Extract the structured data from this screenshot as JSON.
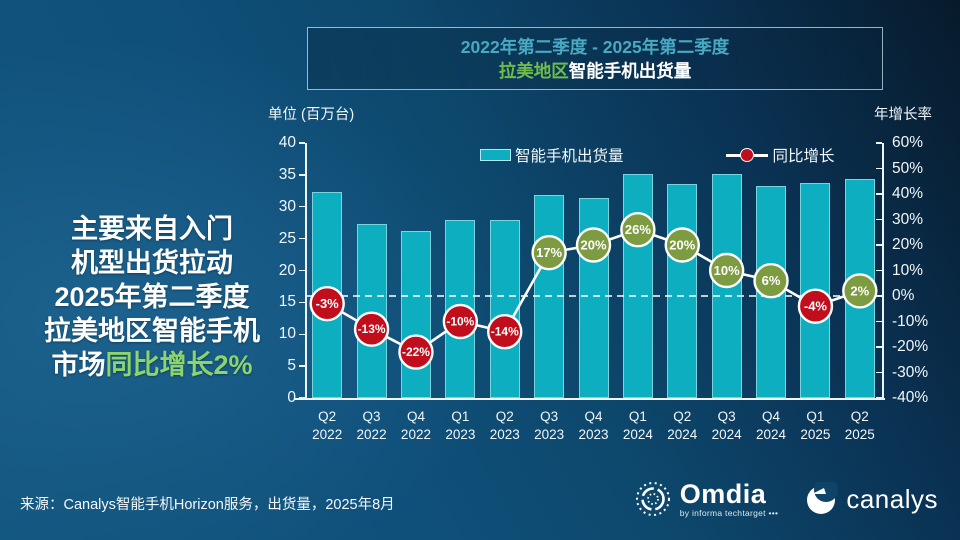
{
  "title_box": {
    "line1": "2022年第二季度 - 2025年第二季度",
    "line2_green": "拉美地区",
    "line2_white": "智能手机出货量"
  },
  "headline": {
    "lines": [
      "主要来自入门",
      "机型出货拉动",
      "2025年第二季度",
      "拉美地区智能手机"
    ],
    "tail_white": "市场",
    "tail_green": "同比增长2%"
  },
  "legend": {
    "bar_label": "智能手机出货量",
    "line_label": "同比增长"
  },
  "chart_data": {
    "type": "combo-bar-line",
    "categories": [
      {
        "quarter": "Q2",
        "year": "2022"
      },
      {
        "quarter": "Q3",
        "year": "2022"
      },
      {
        "quarter": "Q4",
        "year": "2022"
      },
      {
        "quarter": "Q1",
        "year": "2023"
      },
      {
        "quarter": "Q2",
        "year": "2023"
      },
      {
        "quarter": "Q3",
        "year": "2023"
      },
      {
        "quarter": "Q4",
        "year": "2023"
      },
      {
        "quarter": "Q1",
        "year": "2024"
      },
      {
        "quarter": "Q2",
        "year": "2024"
      },
      {
        "quarter": "Q3",
        "year": "2024"
      },
      {
        "quarter": "Q4",
        "year": "2024"
      },
      {
        "quarter": "Q1",
        "year": "2025"
      },
      {
        "quarter": "Q2",
        "year": "2025"
      }
    ],
    "series": [
      {
        "name": "智能手机出货量",
        "type": "bar",
        "unit": "百万台",
        "values": [
          32.3,
          27.3,
          26.2,
          27.9,
          28.0,
          31.9,
          31.4,
          35.2,
          33.6,
          35.1,
          33.3,
          33.8,
          34.3
        ]
      },
      {
        "name": "同比增长",
        "type": "line",
        "unit": "%",
        "values": [
          -3,
          -13,
          -22,
          -10,
          -14,
          17,
          20,
          26,
          20,
          10,
          6,
          -4,
          2
        ],
        "labels": [
          "-3%",
          "-13%",
          "-22%",
          "-10%",
          "-14%",
          "17%",
          "20%",
          "26%",
          "20%",
          "10%",
          "6%",
          "-4%",
          "2%"
        ]
      }
    ],
    "left_axis": {
      "title": "单位 (百万台)",
      "min": 0,
      "max": 40,
      "step": 5,
      "tick_labels": [
        "40",
        "35",
        "30",
        "25",
        "20",
        "15",
        "10",
        "5",
        "0"
      ]
    },
    "right_axis": {
      "title": "年增长率",
      "min": -40,
      "max": 60,
      "step": 10,
      "tick_labels": [
        "60%",
        "50%",
        "40%",
        "30%",
        "20%",
        "10%",
        "0%",
        "-10%",
        "-20%",
        "-30%",
        "-40%"
      ]
    },
    "zero_growth_line": {
      "value": 0,
      "style": "dashed-white"
    },
    "legend_position": "top-inside",
    "colors": {
      "bar": "#0caebf",
      "marker_positive": "#7d9c42",
      "marker_negative": "#c00e1d",
      "line": "#ffffff",
      "title_accent": "#49a9c2",
      "green_accent": "#6fbc4b",
      "headline_green": "#8cd46e"
    }
  },
  "footer": {
    "source": "来源：Canalys智能手机Horizon服务，出货量，2025年8月",
    "omdia_name": "Omdia",
    "omdia_sub": "by informa techtarget •••",
    "canalys_name": "canalys"
  }
}
